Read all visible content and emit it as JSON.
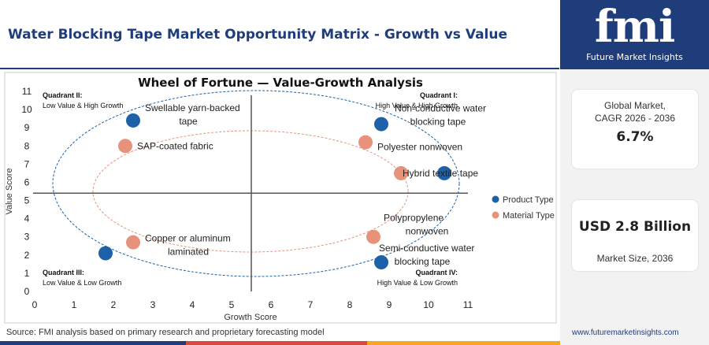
{
  "page": {
    "title": "Water Blocking Tape Market Opportunity Matrix - Growth vs Value",
    "source": "Source: FMI analysis based on primary research and proprietary forecasting model",
    "website": "www.futuremarketinsights.com"
  },
  "logo": {
    "mark": "fmi",
    "tagline": "Future Market Insights"
  },
  "sidebar": {
    "cagr_label_line1": "Global Market,",
    "cagr_label_line2": "CAGR 2026 - 2036",
    "cagr_value": "6.7%",
    "size_value": "USD 2.8 Billion",
    "size_label": "Market Size, 2036"
  },
  "colors": {
    "brand": "#1f3d7a",
    "product": "#1d62a8",
    "material": "#e8927c",
    "orange": "#f5a623",
    "red": "#d94a3a"
  },
  "chart_data": {
    "type": "scatter",
    "title": "Wheel of Fortune — Value-Growth Analysis",
    "xlabel": "Growth Score",
    "ylabel": "Value Score",
    "xlim": [
      0,
      11
    ],
    "ylim": [
      0,
      11
    ],
    "xticks": [
      0,
      1,
      2,
      3,
      4,
      5,
      6,
      7,
      8,
      9,
      10,
      11
    ],
    "yticks": [
      0,
      1,
      2,
      3,
      4,
      5,
      6,
      7,
      8,
      9,
      10,
      11
    ],
    "divider_x": 5.5,
    "divider_y": 5.4,
    "legend_position": "right",
    "quadrants": [
      {
        "name": "Quadrant II:",
        "desc": "Low Value & High Growth",
        "corner": "top-left"
      },
      {
        "name": "Quadrant I:",
        "desc": "High Value & High Growth",
        "corner": "top-right"
      },
      {
        "name": "Quadrant III:",
        "desc": "Low Value & Low Growth",
        "corner": "bottom-left"
      },
      {
        "name": "Quadrant IV:",
        "desc": "High Value & Low Growth",
        "corner": "bottom-right"
      }
    ],
    "series": [
      {
        "name": "Product Type",
        "points": [
          {
            "x": 2.5,
            "y": 9.4,
            "label": [
              "Swellable yarn-backed",
              "tape"
            ]
          },
          {
            "x": 8.8,
            "y": 9.2,
            "label": [
              "Non-conductive water",
              "blocking tape"
            ]
          },
          {
            "x": 10.4,
            "y": 6.5,
            "label": []
          },
          {
            "x": 1.8,
            "y": 2.1,
            "label": []
          },
          {
            "x": 8.8,
            "y": 1.6,
            "label": [
              "Semi-conductive water",
              "blocking tape"
            ]
          }
        ]
      },
      {
        "name": "Material Type",
        "points": [
          {
            "x": 2.3,
            "y": 8.0,
            "label": [
              "SAP-coated fabric"
            ]
          },
          {
            "x": 8.4,
            "y": 8.2,
            "label": [
              "Polyester nonwoven"
            ]
          },
          {
            "x": 9.3,
            "y": 6.5,
            "label": [
              "Hybrid textile tape"
            ]
          },
          {
            "x": 2.5,
            "y": 2.7,
            "label": [
              "Copper  or  aluminum",
              "laminated"
            ]
          },
          {
            "x": 8.6,
            "y": 3.0,
            "label": [
              "Polypropylene",
              "nonwoven"
            ]
          }
        ]
      }
    ]
  }
}
